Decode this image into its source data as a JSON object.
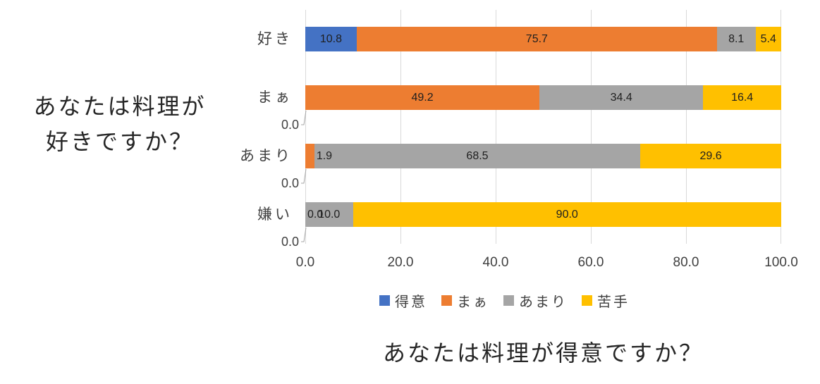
{
  "left_title": {
    "line1": "あなたは料理が",
    "line2": "好きですか？"
  },
  "chart_data": {
    "type": "bar",
    "orientation": "horizontal",
    "stacked": true,
    "title": "あなたは料理が得意ですか？",
    "y_axis_title": "あなたは料理が好きですか？",
    "categories": [
      "好き",
      "まぁ",
      "あまり",
      "嫌い"
    ],
    "series": [
      {
        "name": "得意",
        "color": "#4472C4",
        "values": [
          10.8,
          0.0,
          0.0,
          0.0
        ]
      },
      {
        "name": "まぁ",
        "color": "#ED7D31",
        "values": [
          75.7,
          49.2,
          1.9,
          0.0
        ]
      },
      {
        "name": "あまり",
        "color": "#A5A5A5",
        "values": [
          8.1,
          34.4,
          68.5,
          10.0
        ]
      },
      {
        "name": "苦手",
        "color": "#FFC000",
        "values": [
          5.4,
          16.4,
          29.6,
          90.0
        ]
      }
    ],
    "x_ticks": [
      "0.0",
      "20.0",
      "40.0",
      "60.0",
      "80.0",
      "100.0"
    ],
    "xlim": [
      0,
      100
    ],
    "grid": true,
    "gridline_color": "#D9D9D9",
    "leader_line_color": "#A6A6A6",
    "legend": {
      "position": "bottom",
      "entries": [
        "得意",
        "まぁ",
        "あまり",
        "苦手"
      ]
    },
    "data_label_format": "one-decimal",
    "text_colors": {
      "axis": "#404040",
      "data_label": "#1f1f1f",
      "title": "#262626"
    }
  }
}
